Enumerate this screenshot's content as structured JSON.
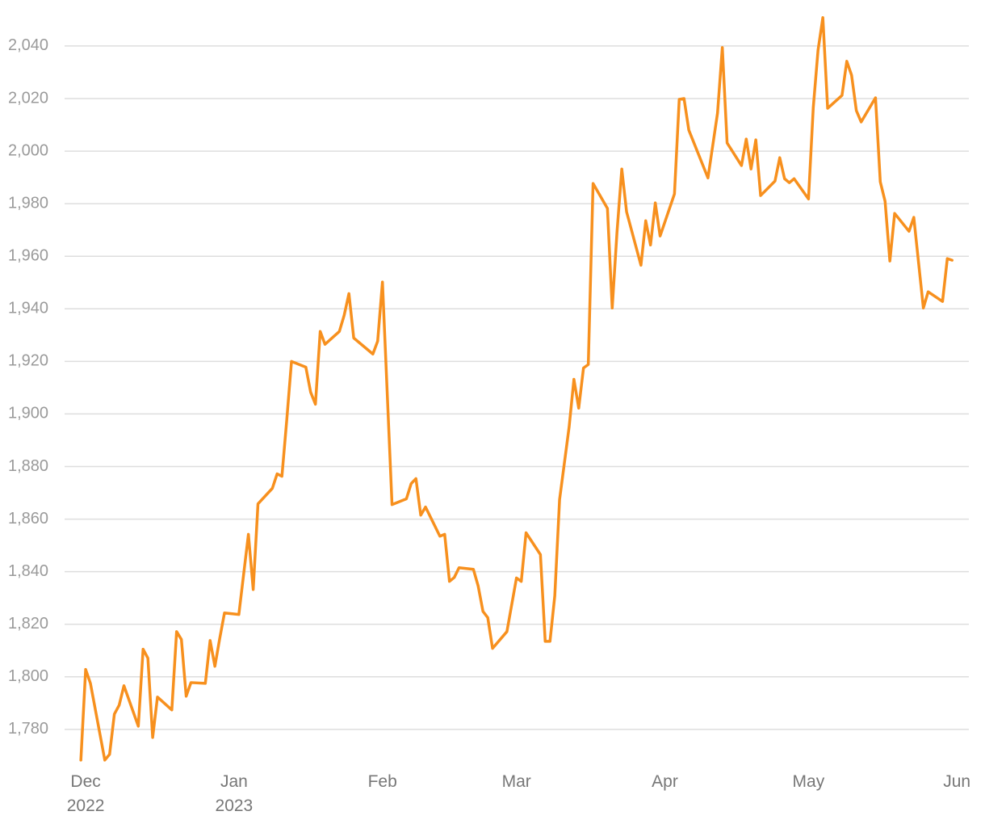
{
  "chart_data": {
    "type": "line",
    "color": "#f7901e",
    "grid": true,
    "x": [
      -1,
      0,
      1,
      4,
      5,
      6,
      7,
      8,
      11,
      12,
      13,
      14,
      15,
      18,
      19,
      20,
      21,
      22,
      25,
      26,
      27,
      28,
      29,
      32,
      34,
      35,
      36,
      39,
      40,
      41,
      42,
      43,
      46,
      47,
      48,
      49,
      50,
      53,
      54,
      55,
      56,
      60,
      61,
      62,
      64,
      67,
      68,
      69,
      70,
      71,
      74,
      75,
      76,
      77,
      78,
      81,
      82,
      83,
      84,
      85,
      88,
      90,
      91,
      92,
      95,
      96,
      97,
      98,
      99,
      101,
      102,
      103,
      104,
      105,
      106,
      109,
      110,
      111,
      112,
      113,
      116,
      117,
      118,
      119,
      120,
      123,
      124,
      125,
      126,
      130,
      132,
      133,
      134,
      137,
      138,
      139,
      140,
      141,
      144,
      145,
      146,
      147,
      148,
      151,
      152,
      153,
      154,
      155,
      158,
      159,
      160,
      161,
      162,
      165,
      166,
      167,
      168,
      169,
      172,
      173,
      174,
      175,
      176,
      179,
      180,
      181
    ],
    "values": [
      1768.3,
      1802.8,
      1797.5,
      1768.3,
      1770.5,
      1785.8,
      1789.2,
      1796.6,
      1781.2,
      1810.5,
      1807.1,
      1776.9,
      1792.3,
      1787.4,
      1817.2,
      1814.2,
      1792.6,
      1797.8,
      1797.5,
      1813.8,
      1804,
      1814.5,
      1824.3,
      1823.7,
      1854.2,
      1833.2,
      1865.8,
      1871.7,
      1877.2,
      1876.3,
      1897.5,
      1920,
      1917.8,
      1908.3,
      1903.7,
      1931.4,
      1926.5,
      1931.4,
      1937.5,
      1945.8,
      1928.9,
      1922.8,
      1927.7,
      1950.2,
      1865.5,
      1867.7,
      1873.5,
      1875.4,
      1861.5,
      1864.6,
      1853.5,
      1854.2,
      1836.3,
      1837.8,
      1841.5,
      1840.9,
      1834.5,
      1824.9,
      1822.5,
      1810.8,
      1817.2,
      1837.6,
      1836.3,
      1854.8,
      1846.5,
      1813.5,
      1813.5,
      1830.8,
      1867.4,
      1895.1,
      1913.2,
      1902.2,
      1917.5,
      1918.8,
      1987.7,
      1978.2,
      1940.3,
      1969.2,
      1993.2,
      1976.9,
      1956.6,
      1973.5,
      1964.3,
      1980.3,
      1967.7,
      1983.7,
      2019.7,
      2020,
      2008,
      1989.8,
      2014.5,
      2039.4,
      2003.1,
      1994.5,
      2004.6,
      1993.2,
      2004.3,
      1983.1,
      1988.6,
      1997.5,
      1989.5,
      1988,
      1989.5,
      1981.8,
      2016.6,
      2038.5,
      2050.8,
      2016.3,
      2021.2,
      2034.2,
      2028.9,
      2015.4,
      2011.1,
      2020.3,
      1988.3,
      1980.9,
      1958.2,
      1976.3,
      1969.5,
      1974.8,
      1957.5,
      1940.3,
      1946.5,
      1942.8,
      1959.1,
      1958.5
    ],
    "xlim": [
      -4.4,
      184.5
    ],
    "xticks": [
      {
        "value": 0,
        "label": "Dec 2022"
      },
      {
        "value": 31,
        "label": "Jan 2023"
      },
      {
        "value": 62,
        "label": "Feb"
      },
      {
        "value": 90,
        "label": "Mar"
      },
      {
        "value": 121,
        "label": "Apr"
      },
      {
        "value": 151,
        "label": "May"
      },
      {
        "value": 182,
        "label": "Jun"
      }
    ],
    "ylim": [
      1765.2,
      2057.5
    ],
    "yticks": [
      {
        "value": 1780,
        "label": "1,780"
      },
      {
        "value": 1800,
        "label": "1,800"
      },
      {
        "value": 1820,
        "label": "1,820"
      },
      {
        "value": 1840,
        "label": "1,840"
      },
      {
        "value": 1860,
        "label": "1,860"
      },
      {
        "value": 1880,
        "label": "1,880"
      },
      {
        "value": 1900,
        "label": "1,900"
      },
      {
        "value": 1920,
        "label": "1,920"
      },
      {
        "value": 1940,
        "label": "1,940"
      },
      {
        "value": 1960,
        "label": "1,960"
      },
      {
        "value": 1980,
        "label": "1,980"
      },
      {
        "value": 2000,
        "label": "2,000"
      },
      {
        "value": 2020,
        "label": "2,020"
      },
      {
        "value": 2040,
        "label": "2,040"
      }
    ]
  }
}
